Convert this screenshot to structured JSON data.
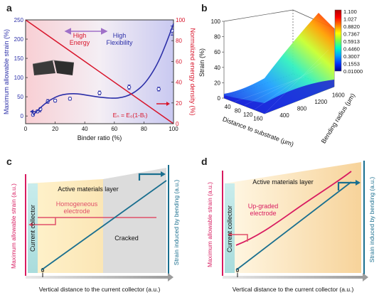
{
  "panels": {
    "a": {
      "letter": "a"
    },
    "b": {
      "letter": "b"
    },
    "c": {
      "letter": "c"
    },
    "d": {
      "letter": "d"
    }
  },
  "colors": {
    "blue": "#2b2fa8",
    "red": "#d8152b",
    "teal": "#1a6f8f",
    "pink": "#d81b60",
    "grey_arrow": "#a8a8a8"
  },
  "chart_data": [
    {
      "panel": "a",
      "type": "scatter",
      "title": "",
      "xlabel": "Binder ratio (%)",
      "ylabel": "Maximum allowable strain (%)",
      "y2label": "Normalized energy density (%)",
      "xlim": [
        0,
        100
      ],
      "ylim": [
        -20,
        250
      ],
      "y2lim": [
        0,
        100
      ],
      "xticks": [
        0,
        20,
        40,
        60,
        80,
        100
      ],
      "yticks": [
        0,
        50,
        100,
        150,
        200,
        250
      ],
      "y2ticks": [
        0,
        20,
        40,
        60,
        80,
        100
      ],
      "series": [
        {
          "axis": "left",
          "kind": "points",
          "color": "#2b2fa8",
          "x": [
            5,
            8,
            10,
            15,
            20,
            30,
            50,
            70,
            90,
            99
          ],
          "y": [
            3,
            12,
            18,
            38,
            40,
            45,
            60,
            75,
            70,
            222
          ],
          "err": [
            3,
            4,
            4,
            5,
            4,
            4,
            5,
            6,
            5,
            12
          ]
        },
        {
          "axis": "left",
          "kind": "fit",
          "color": "#2b2fa8",
          "x": [
            5,
            10,
            15,
            20,
            25,
            30,
            35,
            40,
            45,
            50,
            55,
            60,
            65,
            70,
            75,
            80,
            85,
            90,
            95,
            100
          ],
          "y": [
            2,
            22,
            38,
            49,
            56,
            58,
            58,
            55,
            52,
            49,
            47,
            46,
            48,
            54,
            65,
            82,
            108,
            142,
            188,
            240
          ]
        },
        {
          "axis": "right",
          "kind": "line",
          "color": "#d8152b",
          "x": [
            0,
            100
          ],
          "y": [
            100,
            0
          ]
        }
      ],
      "annotations": [
        "High Energy",
        "High Flexibility",
        "Eₙ = E₀(1-Bᵣ)"
      ]
    },
    {
      "panel": "b",
      "type": "heatmap",
      "title": "",
      "xlabel": "Distance to substrate (μm)",
      "ylabel": "Strain (%)",
      "zlabel": "Bending radius (μm)",
      "xticks": [
        40,
        80,
        120,
        160
      ],
      "yticks": [
        0,
        20,
        40,
        60,
        80,
        100
      ],
      "zticks": [
        400,
        800,
        1200,
        1600
      ],
      "colorbar": [
        "1.100",
        "1.027",
        "0.8820",
        "0.7367",
        "0.5913",
        "0.4460",
        "0.3007",
        "0.1553",
        "0.01000"
      ]
    },
    {
      "panel": "c",
      "type": "line",
      "xlabel": "Vertical distance to the current collector (a.u.)",
      "ylabel": "Maximum allowable strain (a.u.)",
      "y2label": "Strain induced by  bending (a.u.)",
      "xtick": "0",
      "regions": [
        "Current collector",
        "Active materials layer",
        "Cracked"
      ],
      "series": [
        {
          "name": "Homogeneous electrode",
          "color": "#d81b60",
          "shape": "flat"
        },
        {
          "name": "",
          "color": "#1a6f8f",
          "shape": "linear"
        }
      ]
    },
    {
      "panel": "d",
      "type": "line",
      "xlabel": "Vertical distance to the current collector (a.u.)",
      "ylabel": "Maximum allowable strain (a.u.)",
      "y2label": "Strain induced by  bending (a.u.)",
      "xtick": "0",
      "regions": [
        "Current collector",
        "Active materials layer"
      ],
      "series": [
        {
          "name": "Up-graded electrode",
          "color": "#d81b60",
          "shape": "increasing"
        },
        {
          "name": "",
          "color": "#1a6f8f",
          "shape": "linear"
        }
      ]
    }
  ]
}
